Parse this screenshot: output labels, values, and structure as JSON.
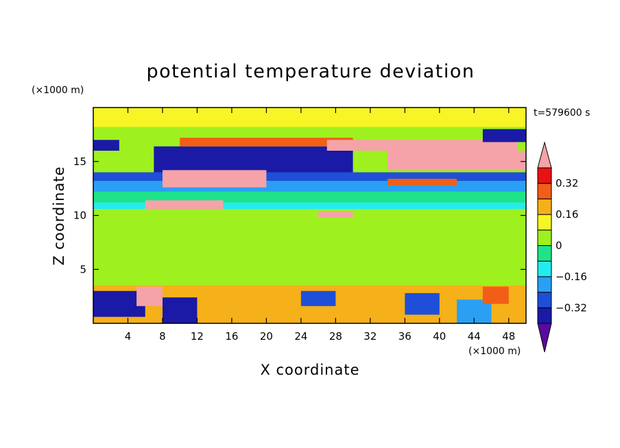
{
  "chart_data": {
    "type": "heatmap",
    "title": "potential temperature deviation",
    "xlabel": "X coordinate",
    "ylabel": "Z coordinate",
    "x_unit": "(×1000 m)",
    "y_unit": "(×1000 m)",
    "time_label": "t=579600 s",
    "xlim": [
      0,
      50
    ],
    "ylim": [
      0,
      20
    ],
    "x_ticks": [
      4,
      8,
      12,
      16,
      20,
      24,
      28,
      32,
      36,
      40,
      44,
      48
    ],
    "y_ticks": [
      5,
      10,
      15
    ],
    "colorbar": {
      "levels": [
        -0.4,
        -0.32,
        -0.24,
        -0.16,
        -0.08,
        0,
        0.08,
        0.16,
        0.24,
        0.32,
        0.4
      ],
      "labeled_ticks": [
        0.32,
        0.16,
        0,
        -0.16,
        -0.32
      ],
      "colors": [
        "#5a0a9e",
        "#1a1aa6",
        "#1f4fd8",
        "#2aa0f5",
        "#23ecf0",
        "#1fe38a",
        "#9ef01e",
        "#f7f526",
        "#f5b01a",
        "#f25e16",
        "#e81212",
        "#f5a3a8"
      ]
    },
    "regions": [
      {
        "x": [
          0,
          50
        ],
        "z": [
          0,
          20
        ],
        "value": 0.02
      },
      {
        "x": [
          0,
          50
        ],
        "z": [
          3.5,
          10.6
        ],
        "value": 0.04
      },
      {
        "x": [
          0,
          50
        ],
        "z": [
          18.2,
          20
        ],
        "value": 0.1
      },
      {
        "x": [
          0,
          50
        ],
        "z": [
          10.6,
          11.2
        ],
        "value": -0.1
      },
      {
        "x": [
          0,
          50
        ],
        "z": [
          11.2,
          12.2
        ],
        "value": -0.04
      },
      {
        "x": [
          0,
          50
        ],
        "z": [
          12.2,
          13.2
        ],
        "value": -0.2
      },
      {
        "x": [
          0,
          50
        ],
        "z": [
          13.2,
          14.0
        ],
        "value": -0.28
      },
      {
        "x": [
          0,
          3
        ],
        "z": [
          16.0,
          17.0
        ],
        "value": -0.36
      },
      {
        "x": [
          7,
          30
        ],
        "z": [
          14.0,
          16.4
        ],
        "value": -0.36
      },
      {
        "x": [
          10,
          30
        ],
        "z": [
          16.4,
          17.2
        ],
        "value": 0.3
      },
      {
        "x": [
          27,
          49
        ],
        "z": [
          16.0,
          17.0
        ],
        "value": 0.44
      },
      {
        "x": [
          34,
          50
        ],
        "z": [
          14.2,
          16.0
        ],
        "value": 0.44
      },
      {
        "x": [
          45,
          50
        ],
        "z": [
          16.8,
          18.0
        ],
        "value": -0.36
      },
      {
        "x": [
          8,
          20
        ],
        "z": [
          12.6,
          14.2
        ],
        "value": 0.44
      },
      {
        "x": [
          6,
          15
        ],
        "z": [
          10.6,
          11.4
        ],
        "value": 0.44
      },
      {
        "x": [
          34,
          42
        ],
        "z": [
          12.8,
          13.4
        ],
        "value": 0.3
      },
      {
        "x": [
          26,
          30
        ],
        "z": [
          9.8,
          10.4
        ],
        "value": 0.44
      },
      {
        "x": [
          0,
          50
        ],
        "z": [
          0,
          3.5
        ],
        "value": 0.18
      },
      {
        "x": [
          0,
          6
        ],
        "z": [
          0.6,
          3.0
        ],
        "value": -0.36
      },
      {
        "x": [
          8,
          12
        ],
        "z": [
          0,
          2.4
        ],
        "value": -0.36
      },
      {
        "x": [
          5,
          8
        ],
        "z": [
          1.6,
          3.4
        ],
        "value": 0.44
      },
      {
        "x": [
          24,
          28
        ],
        "z": [
          1.6,
          3.0
        ],
        "value": -0.3
      },
      {
        "x": [
          36,
          40
        ],
        "z": [
          0.8,
          2.8
        ],
        "value": -0.3
      },
      {
        "x": [
          42,
          46
        ],
        "z": [
          0,
          2.2
        ],
        "value": -0.2
      },
      {
        "x": [
          45,
          48
        ],
        "z": [
          1.8,
          3.4
        ],
        "value": 0.3
      }
    ]
  }
}
